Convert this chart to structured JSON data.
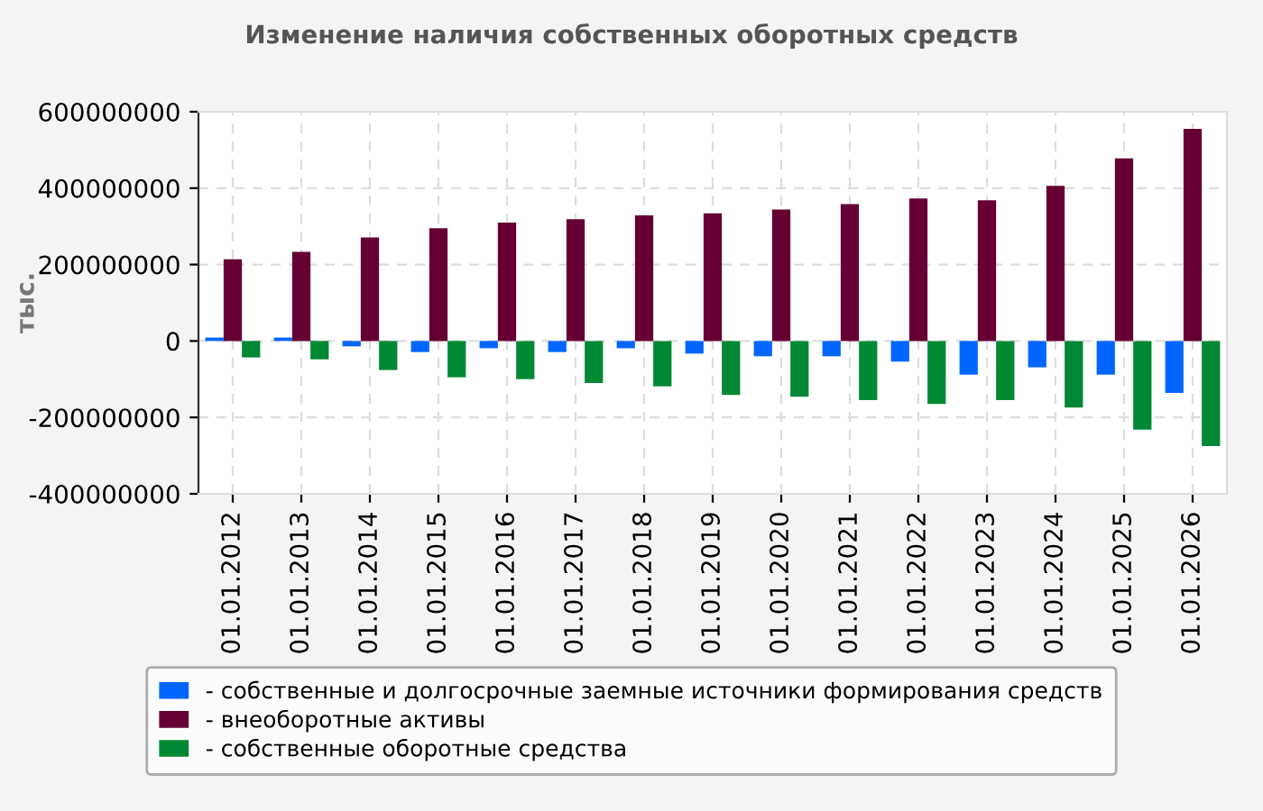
{
  "chart_data": {
    "type": "bar",
    "title": "Изменение наличия собственных оборотных средств",
    "ylabel": "тыс.",
    "categories": [
      "01.01.2012",
      "01.01.2013",
      "01.01.2014",
      "01.01.2015",
      "01.01.2016",
      "01.01.2017",
      "01.01.2018",
      "01.01.2019",
      "01.01.2020",
      "01.01.2021",
      "01.01.2022",
      "01.01.2023",
      "01.01.2024",
      "01.01.2025",
      "01.01.2026"
    ],
    "series": [
      {
        "name": "- собственные и долгосрочные заемные источники формирования средств",
        "color": "#0066ff",
        "values": [
          9000000,
          9000000,
          -14000000,
          -29000000,
          -19000000,
          -29000000,
          -19000000,
          -33000000,
          -40000000,
          -40000000,
          -54000000,
          -88000000,
          -69000000,
          -88000000,
          -136000000
        ]
      },
      {
        "name": "- внеоборотные активы",
        "color": "#660033",
        "values": [
          214000000,
          233000000,
          271000000,
          295000000,
          310000000,
          319000000,
          329000000,
          334000000,
          344000000,
          358000000,
          373000000,
          368000000,
          406000000,
          478000000,
          555000000
        ]
      },
      {
        "name": "- собственные оборотные средства",
        "color": "#008833",
        "values": [
          -43000000,
          -48000000,
          -76000000,
          -95000000,
          -100000000,
          -110000000,
          -119000000,
          -141000000,
          -146000000,
          -155000000,
          -165000000,
          -155000000,
          -174000000,
          -232000000,
          -275000000
        ]
      }
    ],
    "ylim": [
      -400000000,
      600000000
    ],
    "yticks": [
      -400000000,
      -200000000,
      0,
      200000000,
      400000000,
      600000000
    ],
    "grid": true,
    "legend": "bottom"
  }
}
